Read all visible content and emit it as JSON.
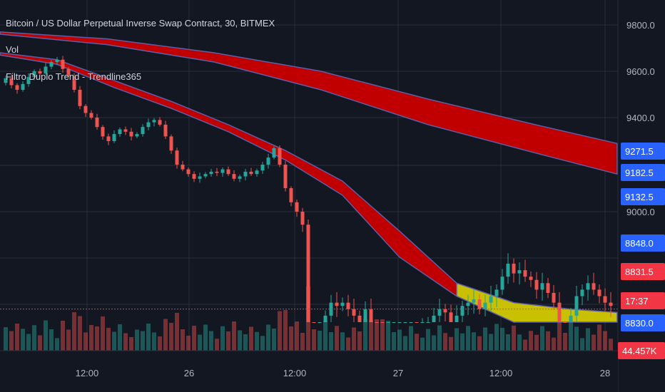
{
  "header": {
    "title": "Bitcoin / US Dollar Perpetual Inverse Swap Contract, 30, BITMEX",
    "indicator_1": "Vol",
    "indicator_2": "Filtro Duplo Trend - Trendline365"
  },
  "colors": {
    "background": "#131722",
    "grid": "#2a2e39",
    "up": "#26a69a",
    "down": "#ef5350",
    "ribbon_red": "#c00000",
    "ribbon_yellow": "#c8c000",
    "ribbon_edge": "#5b5fa8",
    "tag_blue": "#2962ff",
    "tag_red": "#f23645"
  },
  "chart_data": {
    "type": "candlestick",
    "y_axis": {
      "ticks": [
        {
          "value": 9800,
          "label": "9800.0"
        },
        {
          "value": 9600,
          "label": "9600.0"
        },
        {
          "value": 9400,
          "label": "9400.0"
        },
        {
          "value": 9000,
          "label": "9000.0"
        },
        {
          "value": 8830,
          "label": "8830.0"
        }
      ]
    },
    "x_axis": {
      "ticks": [
        "12:00",
        "26",
        "12:00",
        "27",
        "12:00",
        "28"
      ]
    },
    "price_tags": [
      {
        "label": "9271.5",
        "color": "blue",
        "value": 9271.5
      },
      {
        "label": "9182.5",
        "color": "blue",
        "value": 9182.5
      },
      {
        "label": "9132.5",
        "color": "blue",
        "value": 9132.5
      },
      {
        "label": "8848.0",
        "color": "blue",
        "value": 8848.0
      },
      {
        "label": "8831.5",
        "color": "red",
        "value": 8831.5
      },
      {
        "label": "17:37",
        "color": "red",
        "value": null
      },
      {
        "label": "8830.0",
        "color": "blue",
        "value": null
      },
      {
        "label": "44.457K",
        "color": "red",
        "value": null
      }
    ],
    "last_price_line": 8831.5,
    "close_path": [
      [
        0,
        9550
      ],
      [
        8,
        9570
      ],
      [
        16,
        9540
      ],
      [
        24,
        9520
      ],
      [
        32,
        9545
      ],
      [
        40,
        9575
      ],
      [
        48,
        9600
      ],
      [
        56,
        9590
      ],
      [
        64,
        9620
      ],
      [
        72,
        9640
      ],
      [
        80,
        9650
      ],
      [
        88,
        9610
      ],
      [
        96,
        9580
      ],
      [
        104,
        9520
      ],
      [
        112,
        9450
      ],
      [
        120,
        9420
      ],
      [
        128,
        9400
      ],
      [
        136,
        9360
      ],
      [
        144,
        9320
      ],
      [
        152,
        9300
      ],
      [
        160,
        9330
      ],
      [
        168,
        9350
      ],
      [
        176,
        9340
      ],
      [
        184,
        9320
      ],
      [
        192,
        9330
      ],
      [
        200,
        9360
      ],
      [
        208,
        9380
      ],
      [
        216,
        9390
      ],
      [
        224,
        9370
      ],
      [
        232,
        9320
      ],
      [
        240,
        9260
      ],
      [
        248,
        9200
      ],
      [
        256,
        9180
      ],
      [
        264,
        9160
      ],
      [
        272,
        9140
      ],
      [
        280,
        9150
      ],
      [
        288,
        9160
      ],
      [
        296,
        9170
      ],
      [
        304,
        9165
      ],
      [
        312,
        9180
      ],
      [
        320,
        9160
      ],
      [
        328,
        9140
      ],
      [
        336,
        9150
      ],
      [
        344,
        9170
      ],
      [
        352,
        9160
      ],
      [
        360,
        9175
      ],
      [
        368,
        9200
      ],
      [
        376,
        9230
      ],
      [
        384,
        9270
      ],
      [
        392,
        9200
      ],
      [
        400,
        9100
      ],
      [
        408,
        9040
      ],
      [
        416,
        9000
      ],
      [
        424,
        8980
      ],
      [
        432,
        8780
      ],
      [
        440,
        8760
      ],
      [
        448,
        8800
      ],
      [
        456,
        8840
      ],
      [
        464,
        8860
      ],
      [
        472,
        8855
      ],
      [
        480,
        8860
      ],
      [
        488,
        8850
      ],
      [
        496,
        8840
      ],
      [
        504,
        8820
      ],
      [
        512,
        8850
      ],
      [
        520,
        8800
      ],
      [
        528,
        8720
      ],
      [
        536,
        8680
      ],
      [
        544,
        8740
      ],
      [
        552,
        8780
      ],
      [
        560,
        8790
      ],
      [
        568,
        8800
      ],
      [
        576,
        8810
      ],
      [
        584,
        8805
      ],
      [
        592,
        8820
      ],
      [
        600,
        8830
      ],
      [
        608,
        8840
      ],
      [
        616,
        8850
      ],
      [
        624,
        8845
      ],
      [
        632,
        8830
      ],
      [
        640,
        8840
      ],
      [
        648,
        8855
      ],
      [
        656,
        8860
      ],
      [
        664,
        8865
      ],
      [
        672,
        8850
      ],
      [
        680,
        8860
      ],
      [
        688,
        8870
      ],
      [
        696,
        8880
      ],
      [
        704,
        8900
      ],
      [
        712,
        8920
      ],
      [
        720,
        8905
      ],
      [
        728,
        8910
      ],
      [
        736,
        8900
      ],
      [
        744,
        8895
      ],
      [
        752,
        8880
      ],
      [
        760,
        8890
      ],
      [
        768,
        8875
      ],
      [
        776,
        8860
      ],
      [
        784,
        8820
      ],
      [
        792,
        8800
      ],
      [
        800,
        8840
      ],
      [
        808,
        8870
      ],
      [
        816,
        8880
      ],
      [
        824,
        8890
      ],
      [
        832,
        8880
      ],
      [
        840,
        8870
      ],
      [
        848,
        8860
      ],
      [
        856,
        8855
      ]
    ],
    "slow_ribbon": {
      "upper": [
        [
          0,
          9770
        ],
        [
          150,
          9740
        ],
        [
          300,
          9680
        ],
        [
          450,
          9600
        ],
        [
          600,
          9480
        ],
        [
          750,
          9370
        ],
        [
          865,
          9290
        ]
      ],
      "lower": [
        [
          0,
          9760
        ],
        [
          150,
          9715
        ],
        [
          300,
          9640
        ],
        [
          450,
          9520
        ],
        [
          600,
          9370
        ],
        [
          750,
          9250
        ],
        [
          865,
          9160
        ]
      ]
    },
    "fast_ribbon": {
      "upper": [
        [
          0,
          9680
        ],
        [
          80,
          9650
        ],
        [
          160,
          9560
        ],
        [
          240,
          9470
        ],
        [
          320,
          9370
        ],
        [
          400,
          9260
        ],
        [
          480,
          9130
        ],
        [
          560,
          8970
        ],
        [
          640,
          8890
        ],
        [
          720,
          8860
        ],
        [
          800,
          8850
        ],
        [
          865,
          8845
        ]
      ],
      "lower": [
        [
          0,
          9670
        ],
        [
          80,
          9630
        ],
        [
          160,
          9530
        ],
        [
          240,
          9440
        ],
        [
          320,
          9340
        ],
        [
          400,
          9220
        ],
        [
          480,
          9070
        ],
        [
          560,
          8930
        ],
        [
          640,
          8870
        ],
        [
          720,
          8810
        ],
        [
          800,
          8810
        ],
        [
          865,
          8830
        ]
      ]
    }
  }
}
